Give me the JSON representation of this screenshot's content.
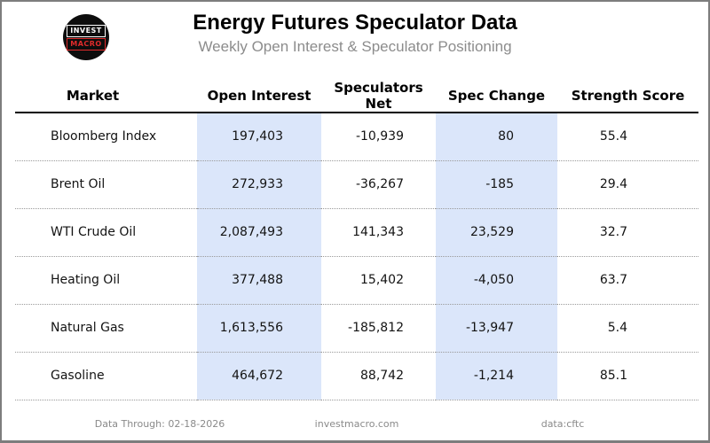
{
  "header": {
    "logo": {
      "line1": "INVEST",
      "line2": "MACRO"
    },
    "title": "Energy Futures Speculator Data",
    "subtitle": "Weekly Open Interest & Speculator Positioning"
  },
  "table": {
    "columns": [
      "Market",
      "Open Interest",
      "Speculators Net",
      "Spec Change",
      "Strength Score"
    ],
    "rows": [
      {
        "market": "Bloomberg Index",
        "open_interest": "197,403",
        "speculators_net": "-10,939",
        "spec_change": "80",
        "strength_score": "55.4"
      },
      {
        "market": "Brent Oil",
        "open_interest": "272,933",
        "speculators_net": "-36,267",
        "spec_change": "-185",
        "strength_score": "29.4"
      },
      {
        "market": "WTI Crude Oil",
        "open_interest": "2,087,493",
        "speculators_net": "141,343",
        "spec_change": "23,529",
        "strength_score": "32.7"
      },
      {
        "market": "Heating Oil",
        "open_interest": "377,488",
        "speculators_net": "15,402",
        "spec_change": "-4,050",
        "strength_score": "63.7"
      },
      {
        "market": "Natural Gas",
        "open_interest": "1,613,556",
        "speculators_net": "-185,812",
        "spec_change": "-13,947",
        "strength_score": "5.4"
      },
      {
        "market": "Gasoline",
        "open_interest": "464,672",
        "speculators_net": "88,742",
        "spec_change": "-1,214",
        "strength_score": "85.1"
      }
    ]
  },
  "footer": {
    "data_through": "Data Through: 02-18-2026",
    "website": "investmacro.com",
    "source": "data:cftc"
  },
  "colors": {
    "column_highlight": "#dbe6fa",
    "logo_red": "#e02b2b",
    "subtitle_gray": "#8c8c8c"
  },
  "chart_data": {
    "type": "table",
    "title": "Energy Futures Speculator Data",
    "subtitle": "Weekly Open Interest & Speculator Positioning",
    "columns": [
      "Market",
      "Open Interest",
      "Speculators Net",
      "Spec Change",
      "Strength Score"
    ],
    "highlighted_columns": [
      "Open Interest",
      "Spec Change"
    ],
    "rows": [
      {
        "market": "Bloomberg Index",
        "open_interest": 197403,
        "speculators_net": -10939,
        "spec_change": 80,
        "strength_score": 55.4
      },
      {
        "market": "Brent Oil",
        "open_interest": 272933,
        "speculators_net": -36267,
        "spec_change": -185,
        "strength_score": 29.4
      },
      {
        "market": "WTI Crude Oil",
        "open_interest": 2087493,
        "speculators_net": 141343,
        "spec_change": 23529,
        "strength_score": 32.7
      },
      {
        "market": "Heating Oil",
        "open_interest": 377488,
        "speculators_net": 15402,
        "spec_change": -4050,
        "strength_score": 63.7
      },
      {
        "market": "Natural Gas",
        "open_interest": 1613556,
        "speculators_net": -185812,
        "spec_change": -13947,
        "strength_score": 5.4
      },
      {
        "market": "Gasoline",
        "open_interest": 464672,
        "speculators_net": 88742,
        "spec_change": -1214,
        "strength_score": 85.1
      }
    ],
    "data_through": "02-18-2026",
    "source": "cftc"
  }
}
